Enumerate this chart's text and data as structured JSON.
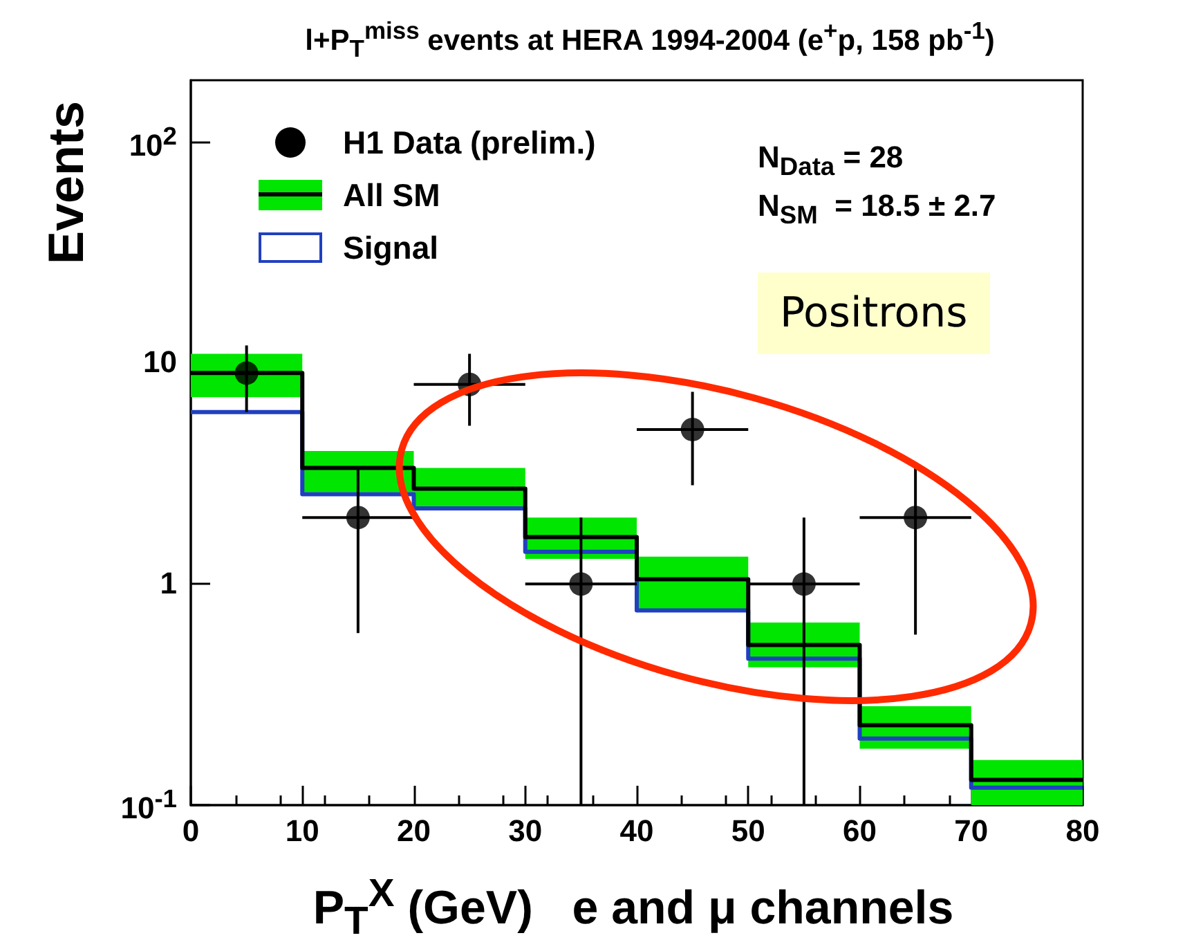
{
  "chart_data": {
    "type": "step",
    "title": "l+P$_{T}$$^{miss}$ events at HERA 1994-2004 (e$^{+}$p, 158 pb$^{-1}$)",
    "xlabel": "P$_{T}$$^{X}$ (GeV)   e and μ channels",
    "ylabel": "Events",
    "series": [
      {
        "type": "bar",
        "color": "#00e600",
        "x": [
          5,
          15,
          25,
          35,
          45,
          55,
          65,
          75
        ],
        "base": [
          7.0,
          2.6,
          2.2,
          1.3,
          0.75,
          0.42,
          0.18,
          0.1
        ],
        "values": [
          4.0,
          1.4,
          1.15,
          0.7,
          0.58,
          0.25,
          0.1,
          0.06
        ]
      },
      {
        "name": "All SM",
        "color": "#000000",
        "x": [
          0,
          10,
          20,
          30,
          40,
          50,
          60,
          70,
          80
        ],
        "values": [
          9.0,
          3.35,
          2.7,
          1.63,
          1.05,
          0.53,
          0.23,
          0.13,
          0.13
        ]
      },
      {
        "name": "Signal",
        "color": "#2040c0",
        "x": [
          0,
          10,
          20,
          30,
          40,
          50,
          60,
          70,
          80
        ],
        "values": [
          6.0,
          2.55,
          2.2,
          1.4,
          0.76,
          0.46,
          0.2,
          0.12,
          0.12
        ]
      },
      {
        "name": "H1 Data (prelim.)",
        "type": "scatter",
        "marker": "circle",
        "color": "#000000",
        "x": [
          5,
          15,
          25,
          35,
          45,
          55,
          65
        ],
        "values": [
          9,
          2,
          8,
          1,
          5,
          1,
          2
        ],
        "errors": [
          [
            6.0,
            12
          ],
          [
            0.6,
            3.4
          ],
          [
            5.2,
            11
          ],
          [
            0.1,
            2.0
          ],
          [
            2.8,
            7.4
          ],
          [
            0.1,
            2.0
          ],
          [
            0.59,
            3.4
          ]
        ],
        "xerrors": [
          5,
          5,
          5,
          5,
          5,
          5,
          5
        ]
      }
    ],
    "xlim": [
      0,
      80
    ],
    "xticks": [
      0,
      10,
      20,
      30,
      40,
      50,
      60,
      70,
      80
    ],
    "ylim": [
      0.1,
      190
    ],
    "yticks": [
      {
        "value": 0.1,
        "label": "10$^{-1}$"
      },
      1,
      10,
      {
        "value": 100,
        "label": "10$^{2}$"
      }
    ],
    "log": "y",
    "grid": false,
    "legend": "top left",
    "annotations": [
      "N$_{Data}$ = 28",
      "N$_{SM}$  = 18.5 ± 2.7",
      "Positrons"
    ]
  }
}
